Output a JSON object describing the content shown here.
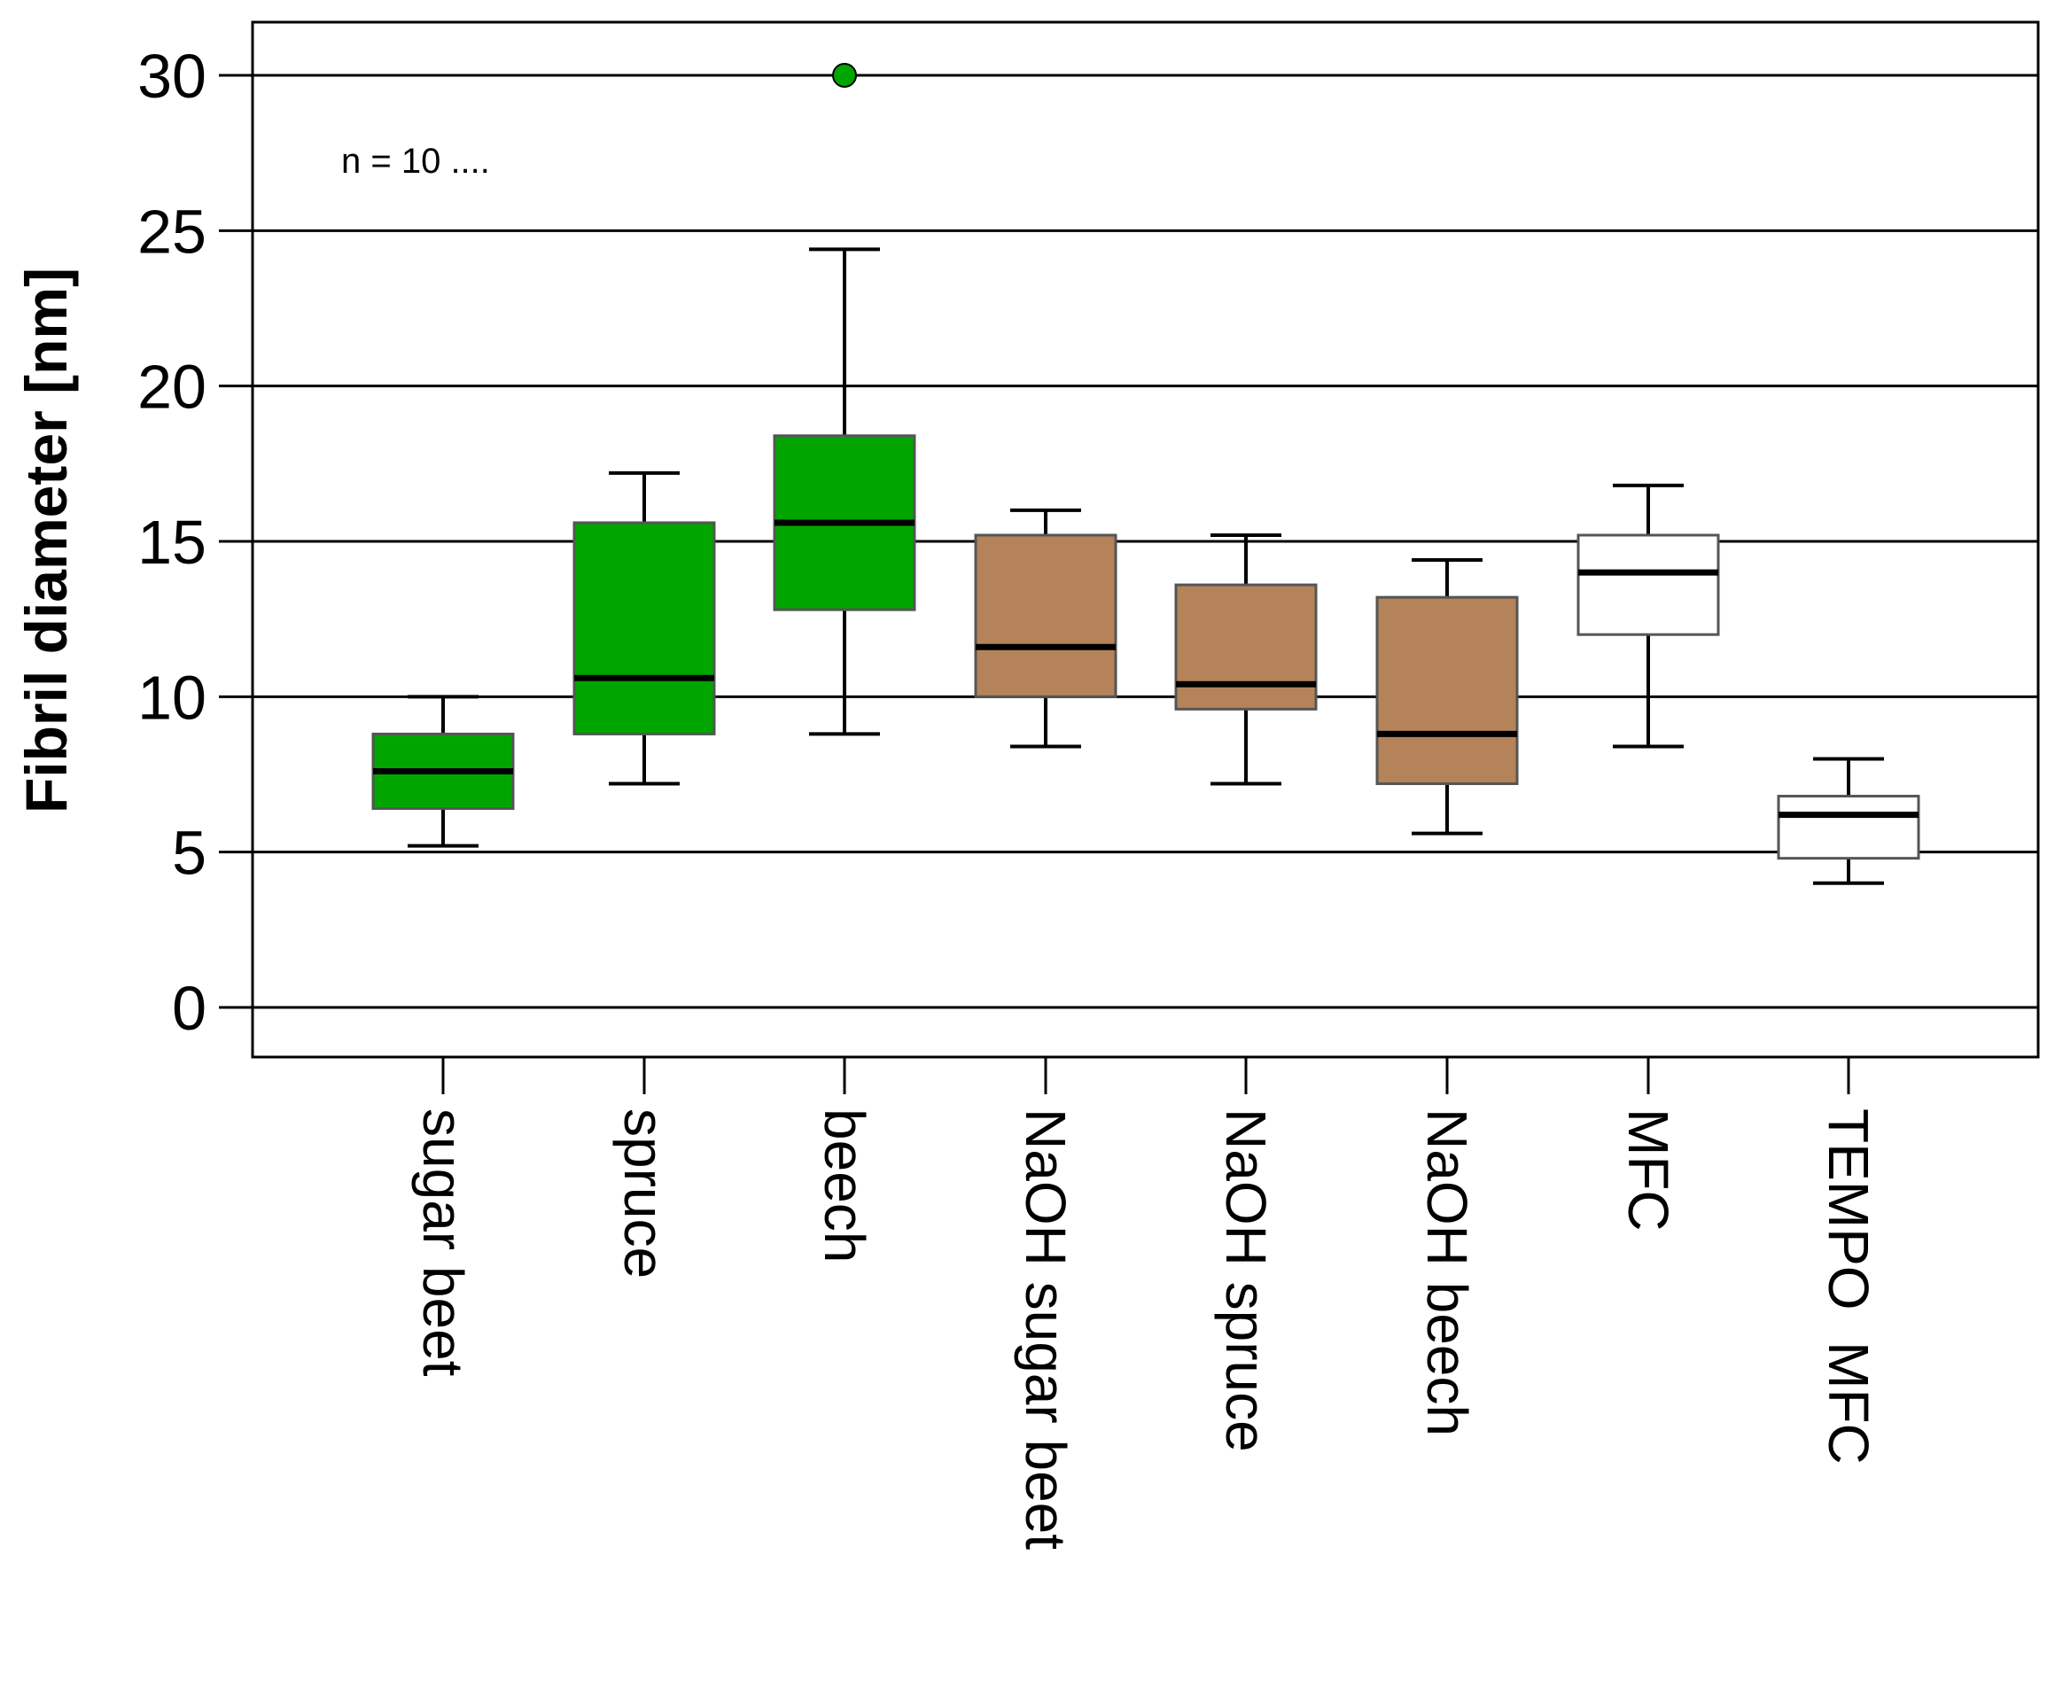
{
  "chart_data": {
    "type": "box",
    "title": "",
    "xlabel": "",
    "ylabel": "Fibril diameter [nm]",
    "ylim": [
      -1.6,
      31.8
    ],
    "yticks": [
      0,
      5,
      10,
      15,
      20,
      25,
      30
    ],
    "grid": true,
    "annotation": "n = 10 ....",
    "colors": {
      "green": "#00a500",
      "brown": "#b5835a",
      "white": "#ffffff",
      "outlier": "#00a500"
    },
    "categories": [
      "sugar beet",
      "spruce",
      "beech",
      "NaOH sugar beet",
      "NaOH spruce",
      "NaOH beech",
      "MFC",
      "TEMPO  MFC"
    ],
    "boxes": [
      {
        "label": "sugar beet",
        "min": 5.2,
        "q1": 6.4,
        "median": 7.6,
        "q3": 8.8,
        "max": 10.0,
        "color": "green",
        "outliers": []
      },
      {
        "label": "spruce",
        "min": 7.2,
        "q1": 8.8,
        "median": 10.6,
        "q3": 15.6,
        "max": 17.2,
        "color": "green",
        "outliers": []
      },
      {
        "label": "beech",
        "min": 8.8,
        "q1": 12.8,
        "median": 15.6,
        "q3": 18.4,
        "max": 24.4,
        "color": "green",
        "outliers": [
          30.0
        ]
      },
      {
        "label": "NaOH sugar beet",
        "min": 8.4,
        "q1": 10.0,
        "median": 11.6,
        "q3": 15.2,
        "max": 16.0,
        "color": "brown",
        "outliers": []
      },
      {
        "label": "NaOH spruce",
        "min": 7.2,
        "q1": 9.6,
        "median": 10.4,
        "q3": 13.6,
        "max": 15.2,
        "color": "brown",
        "outliers": []
      },
      {
        "label": "NaOH beech",
        "min": 5.6,
        "q1": 7.2,
        "median": 8.8,
        "q3": 13.2,
        "max": 14.4,
        "color": "brown",
        "outliers": []
      },
      {
        "label": "MFC",
        "min": 8.4,
        "q1": 12.0,
        "median": 14.0,
        "q3": 15.2,
        "max": 16.8,
        "color": "white",
        "outliers": []
      },
      {
        "label": "TEMPO  MFC",
        "min": 4.0,
        "q1": 4.8,
        "median": 6.2,
        "q3": 6.8,
        "max": 8.0,
        "color": "white",
        "outliers": []
      }
    ]
  }
}
